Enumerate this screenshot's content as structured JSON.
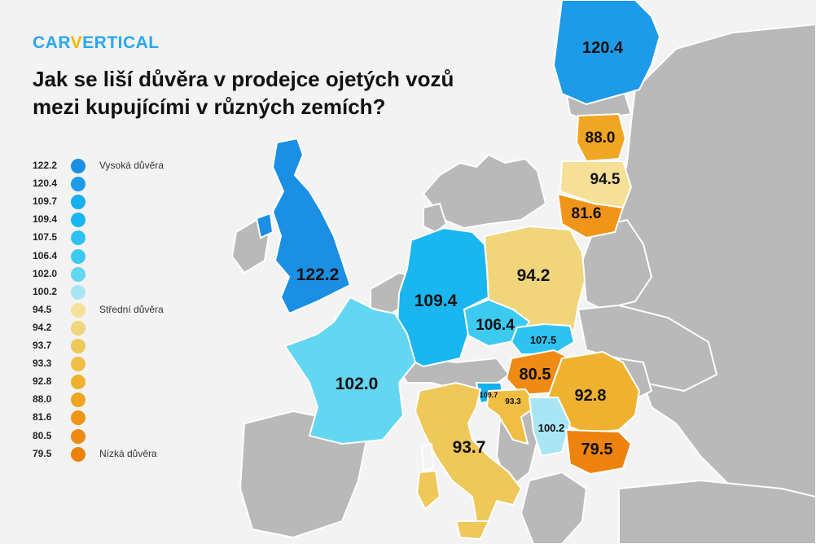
{
  "brand": {
    "name_part1": "CAR",
    "name_v": "V",
    "name_part2": "ERTICAL"
  },
  "title": "Jak se liší důvěra v prodejce ojetých vozů mezi kupujícími v různých zemích?",
  "legend": [
    {
      "value": "122.2",
      "color": "#1a8fe3",
      "label": "Vysoká důvěra"
    },
    {
      "value": "120.4",
      "color": "#1d9ae8",
      "label": ""
    },
    {
      "value": "109.7",
      "color": "#16b0ee",
      "label": ""
    },
    {
      "value": "109.4",
      "color": "#1ab6ef",
      "label": ""
    },
    {
      "value": "107.5",
      "color": "#2ec2f0",
      "label": ""
    },
    {
      "value": "106.4",
      "color": "#3ccaf1",
      "label": ""
    },
    {
      "value": "102.0",
      "color": "#63d6f2",
      "label": ""
    },
    {
      "value": "100.2",
      "color": "#a9e6f4",
      "label": ""
    },
    {
      "value": "94.5",
      "color": "#f6df97",
      "label": "Střední důvěra"
    },
    {
      "value": "94.2",
      "color": "#f1d57a",
      "label": ""
    },
    {
      "value": "93.7",
      "color": "#efc85a",
      "label": ""
    },
    {
      "value": "93.3",
      "color": "#efbe43",
      "label": ""
    },
    {
      "value": "92.8",
      "color": "#efb230",
      "label": ""
    },
    {
      "value": "88.0",
      "color": "#f0a523",
      "label": ""
    },
    {
      "value": "81.6",
      "color": "#f0951a",
      "label": ""
    },
    {
      "value": "80.5",
      "color": "#ef8a14",
      "label": ""
    },
    {
      "value": "79.5",
      "color": "#ee820f",
      "label": "Nízká důvěra"
    }
  ],
  "countries": {
    "finland": {
      "value": "120.4",
      "color": "#1d9ae8"
    },
    "latvia": {
      "value": "88.0",
      "color": "#f0a523"
    },
    "lithuania": {
      "value": "94.5",
      "color": "#f6df97"
    },
    "lithuania_south": {
      "value": "81.6",
      "color": "#f0951a"
    },
    "uk": {
      "value": "122.2",
      "color": "#1a8fe3"
    },
    "germany": {
      "value": "109.4",
      "color": "#1ab6ef"
    },
    "poland": {
      "value": "94.2",
      "color": "#f1d57a"
    },
    "czechia": {
      "value": "106.4",
      "color": "#3ccaf1"
    },
    "slovakia": {
      "value": "107.5",
      "color": "#2ec2f0"
    },
    "hungary": {
      "value": "80.5",
      "color": "#ef8a14"
    },
    "romania": {
      "value": "92.8",
      "color": "#efb230"
    },
    "france": {
      "value": "102.0",
      "color": "#63d6f2"
    },
    "slovenia": {
      "value": "109.7",
      "color": "#16b0ee"
    },
    "croatia": {
      "value": "93.3",
      "color": "#efbe43"
    },
    "serbia": {
      "value": "100.2",
      "color": "#a9e6f4"
    },
    "bulgaria": {
      "value": "79.5",
      "color": "#ee820f"
    },
    "italy": {
      "value": "93.7",
      "color": "#efc85a"
    }
  },
  "colors": {
    "land_other": "#b9b9b9",
    "sea": "#f3f3f3",
    "border": "#ffffff"
  }
}
